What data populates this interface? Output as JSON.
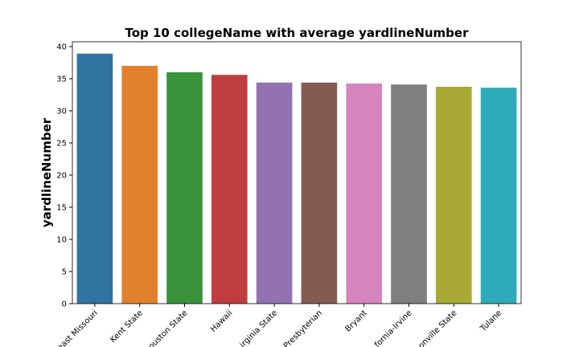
{
  "chart_data": {
    "type": "bar",
    "title": "Top 10 collegeName with average yardlineNumber",
    "y_label": "yardlineNumber",
    "categories": [
      "east Missouri",
      "Kent State",
      "ouston State",
      "Hawaii",
      "irginia State",
      "Presbyterian",
      "Bryant",
      "fornia-Irvine",
      "onville State",
      "Tulane"
    ],
    "values": [
      38.9,
      37.0,
      36.0,
      35.6,
      34.4,
      34.4,
      34.25,
      34.1,
      33.75,
      33.6
    ],
    "colors": [
      "#3274a1",
      "#e1812c",
      "#3a923a",
      "#c03d3e",
      "#9372b2",
      "#845b53",
      "#d684bd",
      "#7f7f7f",
      "#a9aa35",
      "#2eabb8"
    ],
    "ylim": [
      0,
      40.75
    ],
    "yticks": [
      0,
      5,
      10,
      15,
      20,
      25,
      30,
      35,
      40
    ],
    "grid": false
  }
}
